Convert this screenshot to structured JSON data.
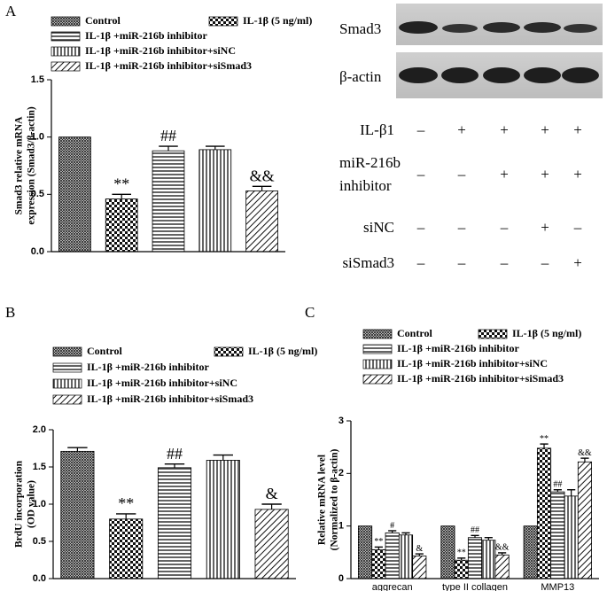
{
  "chart_data": [
    {
      "type": "bar",
      "panel": "A",
      "ylabel": [
        "Smad3 relative mRNA",
        "expression (Smad3/β-actin)"
      ],
      "ylim": [
        0,
        1.5
      ],
      "yticks": [
        {
          "value": 0,
          "label": "0.0"
        },
        {
          "value": 0.5,
          "label": "0.5"
        },
        {
          "value": 1,
          "label": "1.0"
        },
        {
          "value": 1.5,
          "label": "1.5"
        }
      ],
      "series": [
        {
          "name": "Control",
          "pattern": "crosshatch",
          "values": [
            1.0
          ],
          "errors": [
            0
          ]
        },
        {
          "name": "IL-1β (5 ng/ml)",
          "pattern": "checker",
          "values": [
            0.46
          ],
          "errors": [
            0.04
          ],
          "annotations": [
            "**"
          ]
        },
        {
          "name": "IL-1β +miR-216b inhibitor",
          "pattern": "horizontal",
          "values": [
            0.88
          ],
          "errors": [
            0.04
          ],
          "annotations": [
            "##"
          ]
        },
        {
          "name": "IL-1β +miR-216b inhibitor+siNC",
          "pattern": "vertical",
          "values": [
            0.89
          ],
          "errors": [
            0.03
          ]
        },
        {
          "name": "IL-1β +miR-216b inhibitor+siSmad3",
          "pattern": "diagonal",
          "values": [
            0.53
          ],
          "errors": [
            0.04
          ],
          "annotations": [
            "&&"
          ]
        }
      ]
    },
    {
      "type": "bar",
      "panel": "B",
      "ylabel": [
        "BrdU incorporation",
        "(OD value)"
      ],
      "ylim": [
        0,
        2
      ],
      "yticks": [
        {
          "value": 0,
          "label": "0.0"
        },
        {
          "value": 0.5,
          "label": "0.5"
        },
        {
          "value": 1,
          "label": "1.0"
        },
        {
          "value": 1.5,
          "label": "1.5"
        },
        {
          "value": 2,
          "label": "2.0"
        }
      ],
      "series": [
        {
          "name": "Control",
          "pattern": "crosshatch",
          "values": [
            1.71
          ],
          "errors": [
            0.05
          ]
        },
        {
          "name": "IL-1β (5 ng/ml)",
          "pattern": "checker",
          "values": [
            0.8
          ],
          "errors": [
            0.07
          ],
          "annotations": [
            "**"
          ]
        },
        {
          "name": "IL-1β +miR-216b inhibitor",
          "pattern": "horizontal",
          "values": [
            1.49
          ],
          "errors": [
            0.05
          ],
          "annotations": [
            "##"
          ]
        },
        {
          "name": "IL-1β +miR-216b inhibitor+siNC",
          "pattern": "vertical",
          "values": [
            1.59
          ],
          "errors": [
            0.07
          ]
        },
        {
          "name": "IL-1β +miR-216b inhibitor+siSmad3",
          "pattern": "diagonal",
          "values": [
            0.93
          ],
          "errors": [
            0.07
          ],
          "annotations": [
            "&"
          ]
        }
      ]
    },
    {
      "type": "bar",
      "panel": "C",
      "ylabel": [
        "Relative mRNA level",
        "(Normalized to β-actin)"
      ],
      "categories": [
        "aggrecan",
        "type II collagen",
        "MMP13"
      ],
      "ylim": [
        0,
        3
      ],
      "yticks": [
        0,
        1,
        2,
        3
      ],
      "series": [
        {
          "name": "Control",
          "pattern": "crosshatch",
          "values": [
            1,
            1,
            1
          ],
          "errors": [
            0,
            0,
            0
          ]
        },
        {
          "name": "IL-1β (5 ng/ml)",
          "pattern": "checker",
          "values": [
            0.55,
            0.35,
            2.48
          ],
          "errors": [
            0.05,
            0.04,
            0.08
          ],
          "annotations": [
            "**",
            "**",
            "**"
          ]
        },
        {
          "name": "IL-1β +miR-216b inhibitor",
          "pattern": "horizontal",
          "values": [
            0.87,
            0.78,
            1.65
          ],
          "errors": [
            0.04,
            0.04,
            0.04
          ],
          "annotations": [
            "#",
            "##",
            "##"
          ]
        },
        {
          "name": "IL-1β +miR-216b inhibitor+siNC",
          "pattern": "vertical",
          "values": [
            0.83,
            0.73,
            1.57
          ],
          "errors": [
            0.04,
            0.05,
            0.12
          ]
        },
        {
          "name": "IL-1β +miR-216b inhibitor+siSmad3",
          "pattern": "diagonal",
          "values": [
            0.43,
            0.45,
            2.22
          ],
          "errors": [
            0.04,
            0.04,
            0.07
          ],
          "annotations": [
            "&",
            "&&",
            "&&"
          ]
        }
      ]
    }
  ],
  "blot": {
    "bands": [
      "Smad3",
      "β-actin"
    ],
    "conditions": [
      {
        "label": [
          "IL-β1"
        ],
        "marks": [
          "–",
          "+",
          "+",
          "+",
          "+"
        ]
      },
      {
        "label": [
          "miR-216b",
          "inhibitor"
        ],
        "marks": [
          "–",
          "–",
          "+",
          "+",
          "+"
        ]
      },
      {
        "label": [
          "siNC"
        ],
        "marks": [
          "–",
          "–",
          "–",
          "+",
          "–"
        ]
      },
      {
        "label": [
          "siSmad3"
        ],
        "marks": [
          "–",
          "–",
          "–",
          "–",
          "+"
        ]
      }
    ]
  }
}
